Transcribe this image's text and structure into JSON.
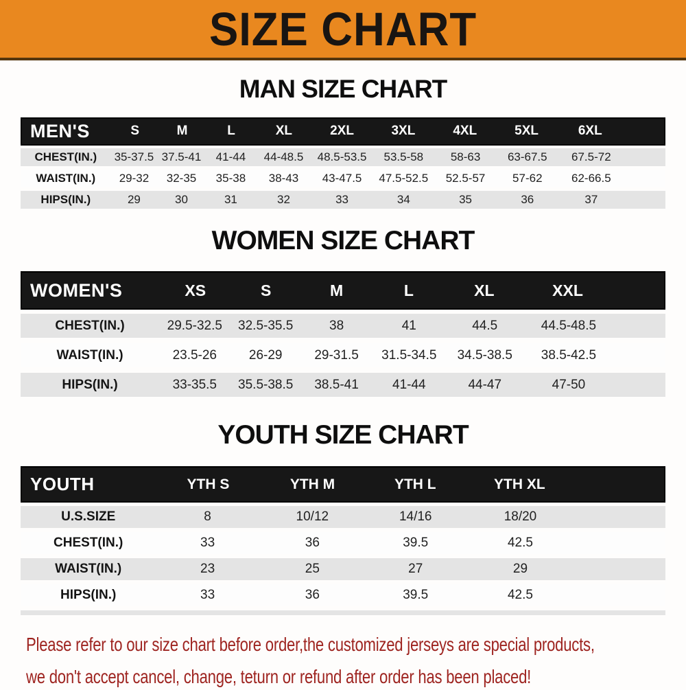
{
  "banner": {
    "title": "SIZE CHART"
  },
  "sections": [
    {
      "id": "men",
      "heading": "MAN SIZE CHART",
      "group_label": "MEN'S",
      "sizes": [
        "S",
        "M",
        "L",
        "XL",
        "2XL",
        "3XL",
        "4XL",
        "5XL",
        "6XL"
      ],
      "rows": [
        {
          "label": "CHEST(IN.)",
          "values": [
            "35-37.5",
            "37.5-41",
            "41-44",
            "44-48.5",
            "48.5-53.5",
            "53.5-58",
            "58-63",
            "63-67.5",
            "67.5-72"
          ]
        },
        {
          "label": "WAIST(IN.)",
          "values": [
            "29-32",
            "32-35",
            "35-38",
            "38-43",
            "43-47.5",
            "47.5-52.5",
            "52.5-57",
            "57-62",
            "62-66.5"
          ]
        },
        {
          "label": "HIPS(IN.)",
          "values": [
            "29",
            "30",
            "31",
            "32",
            "33",
            "34",
            "35",
            "36",
            "37"
          ]
        }
      ]
    },
    {
      "id": "women",
      "heading": "WOMEN SIZE CHART",
      "group_label": "WOMEN'S",
      "sizes": [
        "XS",
        "S",
        "M",
        "L",
        "XL",
        "XXL"
      ],
      "rows": [
        {
          "label": "CHEST(IN.)",
          "values": [
            "29.5-32.5",
            "32.5-35.5",
            "38",
            "41",
            "44.5",
            "44.5-48.5"
          ]
        },
        {
          "label": "WAIST(IN.)",
          "values": [
            "23.5-26",
            "26-29",
            "29-31.5",
            "31.5-34.5",
            "34.5-38.5",
            "38.5-42.5"
          ]
        },
        {
          "label": "HIPS(IN.)",
          "values": [
            "33-35.5",
            "35.5-38.5",
            "38.5-41",
            "41-44",
            "44-47",
            "47-50"
          ]
        }
      ]
    },
    {
      "id": "youth",
      "heading": "YOUTH SIZE CHART",
      "group_label": "YOUTH",
      "sizes": [
        "YTH S",
        "YTH M",
        "YTH L",
        "YTH XL"
      ],
      "rows": [
        {
          "label": "U.S.SIZE",
          "values": [
            "8",
            "10/12",
            "14/16",
            "18/20"
          ]
        },
        {
          "label": "CHEST(IN.)",
          "values": [
            "33",
            "36",
            "39.5",
            "42.5"
          ]
        },
        {
          "label": "WAIST(IN.)",
          "values": [
            "23",
            "25",
            "27",
            "29"
          ]
        },
        {
          "label": "HIPS(IN.)",
          "values": [
            "33",
            "36",
            "39.5",
            "42.5"
          ]
        }
      ]
    }
  ],
  "footer": {
    "line1": "Please refer to our size chart before order,the customized jerseys are special products,",
    "line2": "we don't accept cancel, change, teturn or refund after order has been placed!"
  },
  "colors": {
    "banner_orange": "#e9881f",
    "banner_edge": "#54360e",
    "header_bar": "#171717",
    "row_gray": "#e4e4e4",
    "note_red": "#9e2420"
  }
}
